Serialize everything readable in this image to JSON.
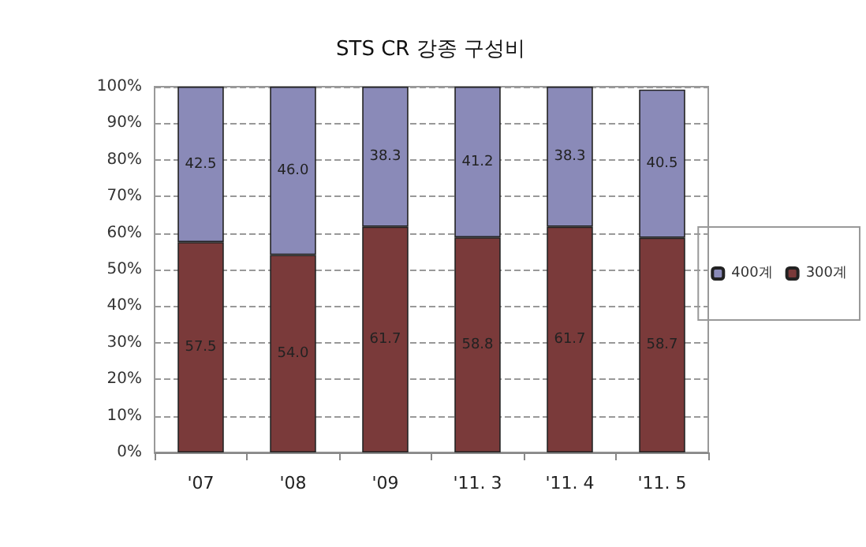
{
  "chart_data": {
    "type": "bar",
    "title": "STS CR 강종 구성비",
    "stacked": true,
    "categories": [
      "'07",
      "'08",
      "'09",
      "'11. 3",
      "'11. 4",
      "'11. 5"
    ],
    "series": [
      {
        "name": "300계",
        "color": "#7a3a3a",
        "values": [
          57.5,
          54.0,
          61.7,
          58.8,
          61.7,
          58.7
        ],
        "value_labels": [
          "57.5",
          "54.0",
          "61.7",
          "58.8",
          "61.7",
          "58.7"
        ]
      },
      {
        "name": "400계",
        "color": "#8a8ab8",
        "values": [
          42.5,
          46.0,
          38.3,
          41.2,
          38.3,
          40.5
        ],
        "value_labels": [
          "42.5",
          "46.0",
          "38.3",
          "41.2",
          "38.3",
          "40.5"
        ]
      }
    ],
    "ylim": [
      0,
      100
    ],
    "yticks": [
      {
        "value": 0,
        "label": "0%"
      },
      {
        "value": 10,
        "label": "10%"
      },
      {
        "value": 20,
        "label": "20%"
      },
      {
        "value": 30,
        "label": "30%"
      },
      {
        "value": 40,
        "label": "40%"
      },
      {
        "value": 50,
        "label": "50%"
      },
      {
        "value": 60,
        "label": "60%"
      },
      {
        "value": 70,
        "label": "70%"
      },
      {
        "value": 80,
        "label": "80%"
      },
      {
        "value": 90,
        "label": "90%"
      },
      {
        "value": 100,
        "label": "100%"
      }
    ],
    "grid": "y",
    "legend": "right"
  }
}
